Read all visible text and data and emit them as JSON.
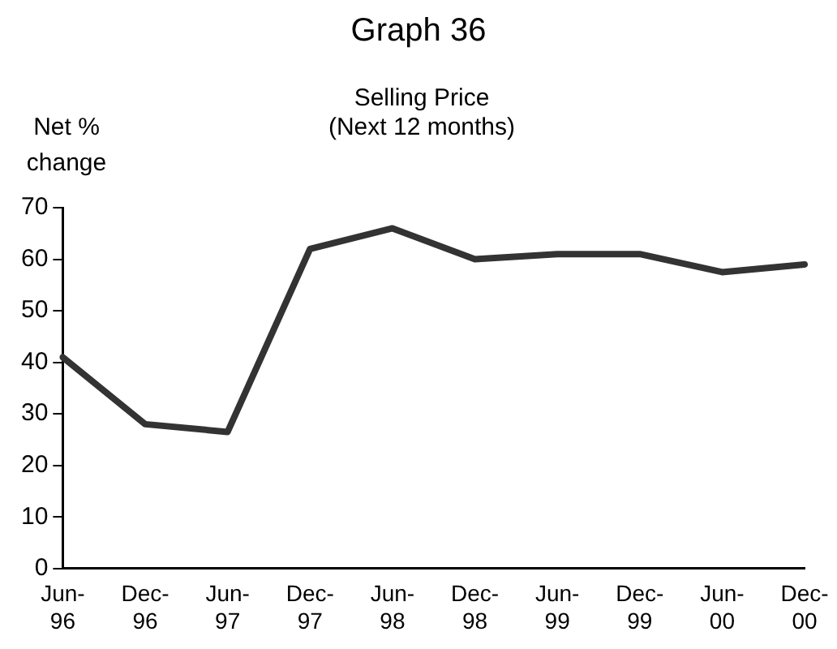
{
  "chart_data": {
    "type": "line",
    "title": "Graph 36",
    "subtitle": "Selling Price\n(Next 12 months)",
    "ylabel": "Net %\nchange",
    "categories": [
      "Jun-96",
      "Dec-96",
      "Jun-97",
      "Dec-97",
      "Jun-98",
      "Dec-98",
      "Jun-99",
      "Dec-99",
      "Jun-00",
      "Dec-00"
    ],
    "series": [
      {
        "color": "#333333",
        "values": [
          41,
          28,
          26.5,
          62,
          66,
          60,
          61,
          61,
          57.5,
          59
        ]
      }
    ],
    "ylim": [
      0,
      70
    ],
    "yticks": [
      0,
      10,
      20,
      30,
      40,
      50,
      60,
      70
    ],
    "grid": false,
    "legend": false,
    "marker": "none",
    "line_style": "solid"
  }
}
